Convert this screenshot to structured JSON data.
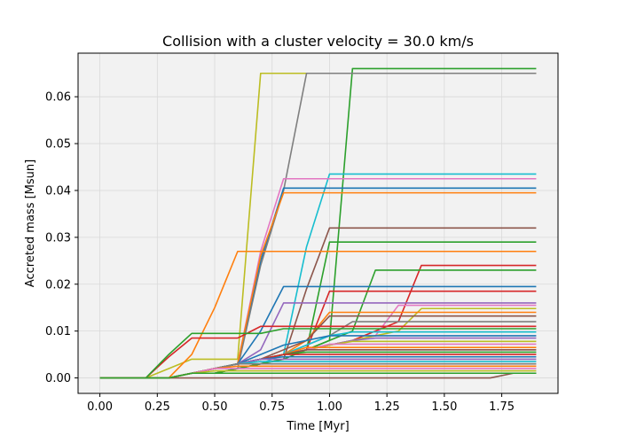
{
  "chart_data": {
    "type": "line",
    "title": "Collision with a cluster velocity = 30.0 km/s",
    "xlabel": "Time [Myr]",
    "ylabel": "Accreted mass [Msun]",
    "xlim": [
      -0.095,
      1.995
    ],
    "ylim": [
      -0.0033,
      0.0693
    ],
    "xticks": [
      0.0,
      0.25,
      0.5,
      0.75,
      1.0,
      1.25,
      1.5,
      1.75
    ],
    "xtick_labels": [
      "0.00",
      "0.25",
      "0.50",
      "0.75",
      "1.00",
      "1.25",
      "1.50",
      "1.75"
    ],
    "yticks": [
      0.0,
      0.01,
      0.02,
      0.03,
      0.04,
      0.05,
      0.06
    ],
    "ytick_labels": [
      "0.00",
      "0.01",
      "0.02",
      "0.03",
      "0.04",
      "0.05",
      "0.06"
    ],
    "grid": true,
    "background": "#f2f2f2",
    "x": [
      0.0,
      0.1,
      0.2,
      0.3,
      0.4,
      0.5,
      0.6,
      0.7,
      0.8,
      0.9,
      1.0,
      1.1,
      1.2,
      1.3,
      1.4,
      1.5,
      1.6,
      1.7,
      1.8,
      1.9
    ],
    "series": [
      {
        "color": "#bcbd22",
        "values": [
          0,
          0,
          0,
          0.002,
          0.004,
          0.004,
          0.004,
          0.065,
          0.065,
          0.065,
          0.065,
          0.065,
          0.065,
          0.065,
          0.065,
          0.065,
          0.065,
          0.065,
          0.065,
          0.065
        ]
      },
      {
        "color": "#2ca02c",
        "values": [
          0,
          0,
          0,
          0,
          0.001,
          0.002,
          0.003,
          0.004,
          0.005,
          0.006,
          0.008,
          0.066,
          0.066,
          0.066,
          0.066,
          0.066,
          0.066,
          0.066,
          0.066,
          0.066
        ]
      },
      {
        "color": "#7f7f7f",
        "values": [
          0,
          0,
          0,
          0,
          0.001,
          0.001,
          0.002,
          0.024,
          0.04,
          0.065,
          0.065,
          0.065,
          0.065,
          0.065,
          0.065,
          0.065,
          0.065,
          0.065,
          0.065,
          0.065
        ]
      },
      {
        "color": "#17becf",
        "values": [
          0,
          0,
          0,
          0,
          0.001,
          0.001,
          0.002,
          0.003,
          0.005,
          0.028,
          0.0435,
          0.0435,
          0.0435,
          0.0435,
          0.0435,
          0.0435,
          0.0435,
          0.0435,
          0.0435,
          0.0435
        ]
      },
      {
        "color": "#e377c2",
        "values": [
          0,
          0,
          0,
          0,
          0.001,
          0.002,
          0.003,
          0.027,
          0.0425,
          0.0425,
          0.0425,
          0.0425,
          0.0425,
          0.0425,
          0.0425,
          0.0425,
          0.0425,
          0.0425,
          0.0425,
          0.0425
        ]
      },
      {
        "color": "#1f77b4",
        "values": [
          0,
          0,
          0,
          0,
          0.001,
          0.002,
          0.003,
          0.025,
          0.0405,
          0.0405,
          0.0405,
          0.0405,
          0.0405,
          0.0405,
          0.0405,
          0.0405,
          0.0405,
          0.0405,
          0.0405,
          0.0405
        ]
      },
      {
        "color": "#ff7f0e",
        "values": [
          0,
          0,
          0,
          0,
          0.001,
          0.002,
          0.003,
          0.026,
          0.0395,
          0.0395,
          0.0395,
          0.0395,
          0.0395,
          0.0395,
          0.0395,
          0.0395,
          0.0395,
          0.0395,
          0.0395,
          0.0395
        ]
      },
      {
        "color": "#8c564b",
        "values": [
          0,
          0,
          0,
          0,
          0.001,
          0.001,
          0.002,
          0.003,
          0.004,
          0.019,
          0.032,
          0.032,
          0.032,
          0.032,
          0.032,
          0.032,
          0.032,
          0.032,
          0.032,
          0.032
        ]
      },
      {
        "color": "#2ca02c",
        "values": [
          0,
          0,
          0,
          0,
          0.001,
          0.001,
          0.002,
          0.003,
          0.004,
          0.006,
          0.029,
          0.029,
          0.029,
          0.029,
          0.029,
          0.029,
          0.029,
          0.029,
          0.029,
          0.029
        ]
      },
      {
        "color": "#ff7f0e",
        "values": [
          0,
          0,
          0,
          0,
          0.005,
          0.015,
          0.027,
          0.027,
          0.027,
          0.027,
          0.027,
          0.027,
          0.027,
          0.027,
          0.027,
          0.027,
          0.027,
          0.027,
          0.027,
          0.027
        ]
      },
      {
        "color": "#d62728",
        "values": [
          0,
          0,
          0,
          0,
          0.001,
          0.002,
          0.003,
          0.004,
          0.005,
          0.006,
          0.007,
          0.008,
          0.01,
          0.012,
          0.024,
          0.024,
          0.024,
          0.024,
          0.024,
          0.024
        ]
      },
      {
        "color": "#2ca02c",
        "values": [
          0,
          0,
          0,
          0,
          0.001,
          0.002,
          0.003,
          0.004,
          0.005,
          0.006,
          0.008,
          0.01,
          0.023,
          0.023,
          0.023,
          0.023,
          0.023,
          0.023,
          0.023,
          0.023
        ]
      },
      {
        "color": "#1f77b4",
        "values": [
          0,
          0,
          0,
          0,
          0.001,
          0.002,
          0.003,
          0.01,
          0.0195,
          0.0195,
          0.0195,
          0.0195,
          0.0195,
          0.0195,
          0.0195,
          0.0195,
          0.0195,
          0.0195,
          0.0195,
          0.0195
        ]
      },
      {
        "color": "#d62728",
        "values": [
          0,
          0,
          0,
          0,
          0.001,
          0.002,
          0.003,
          0.004,
          0.005,
          0.006,
          0.0185,
          0.0185,
          0.0185,
          0.0185,
          0.0185,
          0.0185,
          0.0185,
          0.0185,
          0.0185,
          0.0185
        ]
      },
      {
        "color": "#9467bd",
        "values": [
          0,
          0,
          0,
          0,
          0.001,
          0.002,
          0.003,
          0.006,
          0.016,
          0.016,
          0.016,
          0.016,
          0.016,
          0.016,
          0.016,
          0.016,
          0.016,
          0.016,
          0.016,
          0.016
        ]
      },
      {
        "color": "#e377c2",
        "values": [
          0,
          0,
          0,
          0,
          0.001,
          0.002,
          0.003,
          0.004,
          0.005,
          0.006,
          0.007,
          0.008,
          0.009,
          0.0155,
          0.0155,
          0.0155,
          0.0155,
          0.0155,
          0.0155,
          0.0155
        ]
      },
      {
        "color": "#bcbd22",
        "values": [
          0,
          0,
          0,
          0,
          0.001,
          0.002,
          0.003,
          0.004,
          0.005,
          0.006,
          0.007,
          0.008,
          0.009,
          0.01,
          0.0148,
          0.0148,
          0.0148,
          0.0148,
          0.0148,
          0.0148
        ]
      },
      {
        "color": "#ff7f0e",
        "values": [
          0,
          0,
          0,
          0,
          0.001,
          0.002,
          0.003,
          0.004,
          0.005,
          0.008,
          0.014,
          0.014,
          0.014,
          0.014,
          0.014,
          0.014,
          0.014,
          0.014,
          0.014,
          0.014
        ]
      },
      {
        "color": "#8c564b",
        "values": [
          0,
          0,
          0,
          0,
          0.001,
          0.002,
          0.003,
          0.004,
          0.006,
          0.008,
          0.0132,
          0.0132,
          0.0132,
          0.0132,
          0.0132,
          0.0132,
          0.0132,
          0.0132,
          0.0132,
          0.0132
        ]
      },
      {
        "color": "#7f7f7f",
        "values": [
          0,
          0,
          0,
          0,
          0.001,
          0.002,
          0.003,
          0.004,
          0.005,
          0.007,
          0.009,
          0.012,
          0.012,
          0.012,
          0.012,
          0.012,
          0.012,
          0.012,
          0.012,
          0.012
        ]
      },
      {
        "color": "#d62728",
        "values": [
          0,
          0,
          0,
          0.0045,
          0.0085,
          0.0085,
          0.0085,
          0.011,
          0.011,
          0.011,
          0.011,
          0.011,
          0.011,
          0.011,
          0.011,
          0.011,
          0.011,
          0.011,
          0.011,
          0.011
        ]
      },
      {
        "color": "#2ca02c",
        "values": [
          0,
          0,
          0,
          0.005,
          0.0095,
          0.0095,
          0.0095,
          0.0095,
          0.0105,
          0.0105,
          0.0105,
          0.0105,
          0.0105,
          0.0105,
          0.0105,
          0.0105,
          0.0105,
          0.0105,
          0.0105,
          0.0105
        ]
      },
      {
        "color": "#17becf",
        "values": [
          0,
          0,
          0,
          0,
          0.001,
          0.002,
          0.003,
          0.004,
          0.005,
          0.007,
          0.009,
          0.0098,
          0.0098,
          0.0098,
          0.0098,
          0.0098,
          0.0098,
          0.0098,
          0.0098,
          0.0098
        ]
      },
      {
        "color": "#1f77b4",
        "values": [
          0,
          0,
          0,
          0,
          0.001,
          0.002,
          0.003,
          0.005,
          0.007,
          0.008,
          0.009,
          0.009,
          0.009,
          0.009,
          0.009,
          0.009,
          0.009,
          0.009,
          0.009,
          0.009
        ]
      },
      {
        "color": "#9467bd",
        "values": [
          0,
          0,
          0,
          0,
          0.001,
          0.002,
          0.003,
          0.004,
          0.005,
          0.006,
          0.007,
          0.008,
          0.0085,
          0.0085,
          0.0085,
          0.0085,
          0.0085,
          0.0085,
          0.0085,
          0.0085
        ]
      },
      {
        "color": "#bcbd22",
        "values": [
          0,
          0,
          0,
          0,
          0.001,
          0.002,
          0.003,
          0.004,
          0.005,
          0.006,
          0.007,
          0.0078,
          0.0078,
          0.0078,
          0.0078,
          0.0078,
          0.0078,
          0.0078,
          0.0078,
          0.0078
        ]
      },
      {
        "color": "#e377c2",
        "values": [
          0,
          0,
          0,
          0,
          0.001,
          0.002,
          0.003,
          0.004,
          0.005,
          0.006,
          0.0072,
          0.0072,
          0.0072,
          0.0072,
          0.0072,
          0.0072,
          0.0072,
          0.0072,
          0.0072,
          0.0072
        ]
      },
      {
        "color": "#ff7f0e",
        "values": [
          0,
          0,
          0,
          0,
          0.001,
          0.002,
          0.003,
          0.004,
          0.005,
          0.0065,
          0.0065,
          0.0065,
          0.0065,
          0.0065,
          0.0065,
          0.0065,
          0.0065,
          0.0065,
          0.0065,
          0.0065
        ]
      },
      {
        "color": "#8c564b",
        "values": [
          0,
          0,
          0,
          0,
          0.001,
          0.002,
          0.003,
          0.004,
          0.005,
          0.006,
          0.006,
          0.006,
          0.006,
          0.006,
          0.006,
          0.006,
          0.006,
          0.006,
          0.006,
          0.006
        ]
      },
      {
        "color": "#2ca02c",
        "values": [
          0,
          0,
          0,
          0,
          0.001,
          0.002,
          0.003,
          0.004,
          0.005,
          0.0055,
          0.0055,
          0.0055,
          0.0055,
          0.0055,
          0.0055,
          0.0055,
          0.0055,
          0.0055,
          0.0055,
          0.0055
        ]
      },
      {
        "color": "#d62728",
        "values": [
          0,
          0,
          0,
          0,
          0.001,
          0.002,
          0.003,
          0.004,
          0.005,
          0.005,
          0.005,
          0.005,
          0.005,
          0.005,
          0.005,
          0.005,
          0.005,
          0.005,
          0.005,
          0.005
        ]
      },
      {
        "color": "#1f77b4",
        "values": [
          0,
          0,
          0,
          0,
          0.001,
          0.002,
          0.003,
          0.004,
          0.0045,
          0.0045,
          0.0045,
          0.0045,
          0.0045,
          0.0045,
          0.0045,
          0.0045,
          0.0045,
          0.0045,
          0.0045,
          0.0045
        ]
      },
      {
        "color": "#9467bd",
        "values": [
          0,
          0,
          0,
          0,
          0.001,
          0.002,
          0.003,
          0.004,
          0.004,
          0.004,
          0.004,
          0.004,
          0.004,
          0.004,
          0.004,
          0.004,
          0.004,
          0.004,
          0.004,
          0.004
        ]
      },
      {
        "color": "#17becf",
        "values": [
          0,
          0,
          0,
          0,
          0.001,
          0.002,
          0.003,
          0.0035,
          0.0035,
          0.0035,
          0.0035,
          0.0035,
          0.0035,
          0.0035,
          0.0035,
          0.0035,
          0.0035,
          0.0035,
          0.0035,
          0.0035
        ]
      },
      {
        "color": "#7f7f7f",
        "values": [
          0,
          0,
          0,
          0,
          0.001,
          0.002,
          0.003,
          0.003,
          0.003,
          0.003,
          0.003,
          0.003,
          0.003,
          0.003,
          0.003,
          0.003,
          0.003,
          0.003,
          0.003,
          0.003
        ]
      },
      {
        "color": "#ff7f0e",
        "values": [
          0,
          0,
          0,
          0,
          0.001,
          0.002,
          0.0025,
          0.0025,
          0.0025,
          0.0025,
          0.0025,
          0.0025,
          0.0025,
          0.0025,
          0.0025,
          0.0025,
          0.0025,
          0.0025,
          0.0025,
          0.0025
        ]
      },
      {
        "color": "#e377c2",
        "values": [
          0,
          0,
          0,
          0,
          0.001,
          0.002,
          0.002,
          0.002,
          0.002,
          0.002,
          0.002,
          0.002,
          0.002,
          0.002,
          0.002,
          0.002,
          0.002,
          0.002,
          0.002,
          0.002
        ]
      },
      {
        "color": "#bcbd22",
        "values": [
          0,
          0,
          0,
          0,
          0.001,
          0.0015,
          0.0015,
          0.0015,
          0.0015,
          0.0015,
          0.0015,
          0.0015,
          0.0015,
          0.0015,
          0.0015,
          0.0015,
          0.0015,
          0.0015,
          0.0015,
          0.0015
        ]
      },
      {
        "color": "#8c564b",
        "values": [
          0,
          0,
          0,
          0,
          0,
          0,
          0,
          0,
          0,
          0,
          0,
          0,
          0,
          0,
          0,
          0,
          0,
          0,
          0.001,
          0.001
        ]
      },
      {
        "color": "#2ca02c",
        "values": [
          0,
          0,
          0,
          0,
          0.001,
          0.001,
          0.001,
          0.001,
          0.001,
          0.001,
          0.001,
          0.001,
          0.001,
          0.001,
          0.001,
          0.001,
          0.001,
          0.001,
          0.001,
          0.001
        ]
      }
    ]
  }
}
